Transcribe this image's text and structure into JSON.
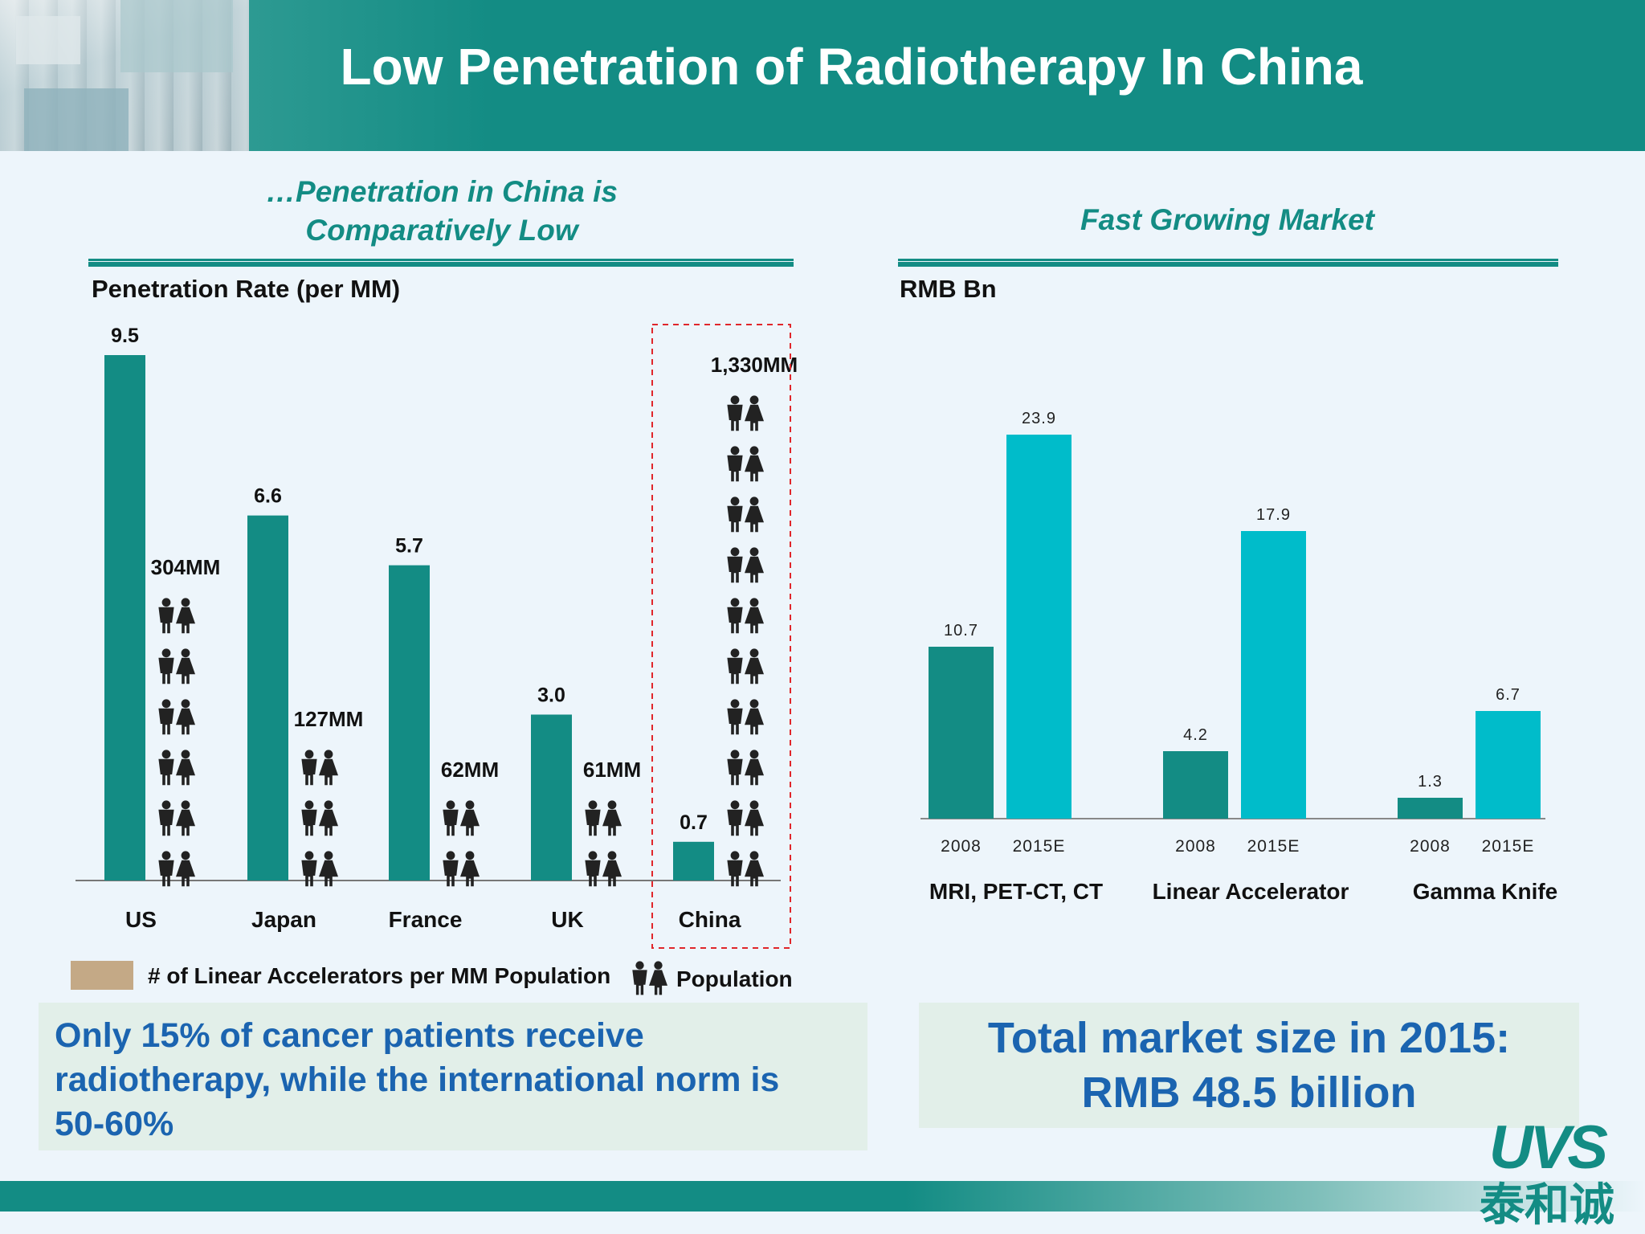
{
  "header": {
    "title": "Low Penetration of Radiotherapy In China"
  },
  "left_panel": {
    "heading_line1": "…Penetration in China is",
    "heading_line2": "Comparatively Low",
    "axis_title": "Penetration Rate (per MM)",
    "legend_bar_label": "# of Linear Accelerators per MM Population",
    "legend_population_label": "Population"
  },
  "right_panel": {
    "heading": "Fast Growing Market",
    "axis_title": "RMB Bn"
  },
  "callouts": {
    "left_line1": "Only 15% of cancer patients receive",
    "left_line2": "radiotherapy, while the international norm is",
    "left_line3": "50-60%",
    "right_line1": "Total market size in 2015:",
    "right_line2": "RMB 48.5 billion"
  },
  "logo": {
    "latin": "UVS",
    "chinese": "泰和诚"
  },
  "icons": {
    "population": "people-pair-icon"
  },
  "colors": {
    "teal": "#138c84",
    "cyan": "#00bcca",
    "legend_swatch": "#c4a986",
    "callout_text": "#1b64b0",
    "highlight_box": "#e0262b"
  },
  "chart_data": [
    {
      "type": "bar",
      "title": "Penetration Rate (per MM)",
      "categories": [
        "US",
        "Japan",
        "France",
        "UK",
        "China"
      ],
      "values": [
        9.5,
        6.6,
        5.7,
        3.0,
        0.7
      ],
      "value_labels": [
        "9.5",
        "6.6",
        "5.7",
        "3.0",
        "0.7"
      ],
      "population_labels": [
        "304MM",
        "127MM",
        "62MM",
        "61MM",
        "1,330MM"
      ],
      "population_icon_counts": [
        6,
        3,
        2,
        2,
        10
      ],
      "highlight_category": "China",
      "ylim": [
        0,
        9.5
      ],
      "grid": false
    },
    {
      "type": "bar",
      "title": "RMB Bn",
      "categories": [
        "MRI, PET-CT, CT",
        "Linear Accelerator",
        "Gamma Knife"
      ],
      "x_sub_labels": [
        "2008",
        "2015E"
      ],
      "series": [
        {
          "name": "2008",
          "values": [
            10.7,
            4.2,
            1.3
          ]
        },
        {
          "name": "2015E",
          "values": [
            23.9,
            17.9,
            6.7
          ]
        }
      ],
      "ylim": [
        0,
        23.9
      ],
      "grid": false
    }
  ]
}
